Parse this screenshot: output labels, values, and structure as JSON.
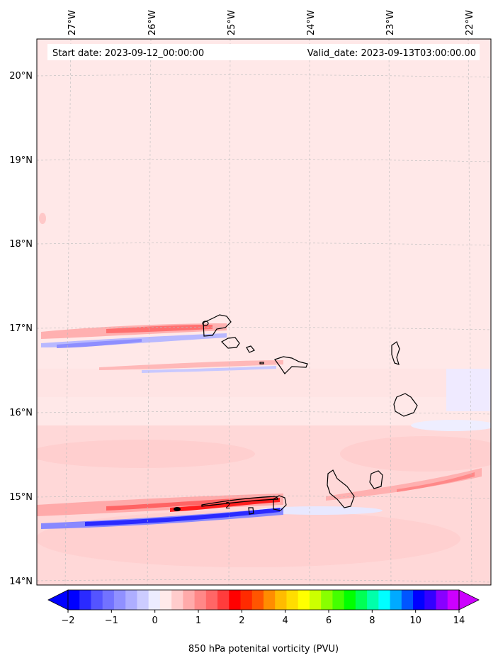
{
  "map": {
    "start_date": "Start date: 2023-09-12_00:00:00",
    "valid_date": "Valid_date: 2023-09-13T03:00:00.00",
    "longitude_labels": [
      "27°W",
      "26°W",
      "25°W",
      "24°W",
      "23°W",
      "22°W"
    ],
    "latitude_labels": [
      "20°N",
      "19°N",
      "18°N",
      "17°N",
      "16°N",
      "15°N",
      "14°N"
    ],
    "contour_label": "2",
    "background_color": "#ffe8e8"
  },
  "colorbar": {
    "title": "850 hPa potenital vorticity (PVU)",
    "tick_labels": [
      "−2",
      "−1",
      "0",
      "1",
      "2",
      "4",
      "6",
      "8",
      "10",
      "14"
    ],
    "colors": [
      "#0000ff",
      "#2a2aff",
      "#5454ff",
      "#7272ff",
      "#9090ff",
      "#aeaeff",
      "#ccccff",
      "#ececff",
      "#ffeaea",
      "#ffcccc",
      "#ffaaaa",
      "#ff8888",
      "#ff6666",
      "#ff3c3c",
      "#ff0000",
      "#ff2a00",
      "#ff5500",
      "#ff8c00",
      "#ffbb00",
      "#ffdd00",
      "#ffff00",
      "#ccff00",
      "#88ff00",
      "#44ff00",
      "#00ff00",
      "#00ff55",
      "#00ffaa",
      "#00ffff",
      "#00aaff",
      "#0055ff",
      "#0000ff",
      "#3300ff",
      "#8800ff",
      "#cc00ff"
    ]
  }
}
